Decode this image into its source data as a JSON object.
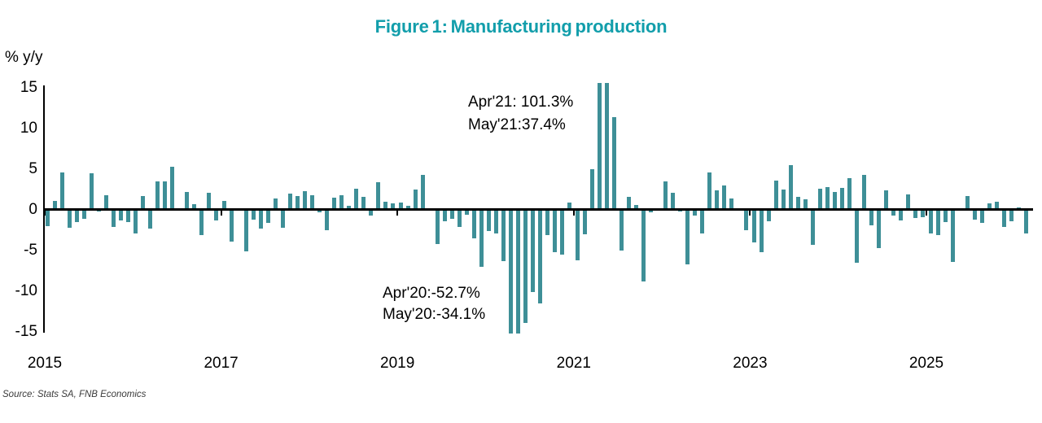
{
  "title": "Figure 1: Manufacturing production",
  "y_axis_unit": "% y/y",
  "source_note": "Source: Stats SA, FNB Economics",
  "colors": {
    "title": "#129EAB",
    "bar": "#3E8F97",
    "axis": "#000000"
  },
  "annotations": {
    "peak_line1": "Apr'21: 101.3%",
    "peak_line2": "May'21:37.4%",
    "trough_line1": "Apr'20:-52.7%",
    "trough_line2": "May'20:-34.1%"
  },
  "chart_data": {
    "type": "bar",
    "title": "Figure 1: Manufacturing production",
    "xlabel": "",
    "ylabel": "% y/y",
    "ylim": [
      -15,
      15
    ],
    "yticks": [
      15,
      10,
      5,
      0,
      -5,
      -10,
      -15
    ],
    "x_tick_labels": [
      "2015",
      "2017",
      "2019",
      "2021",
      "2023",
      "2025"
    ],
    "frequency": "monthly",
    "start": "2015-01",
    "grid": false,
    "legend": "none",
    "clipped_to_axis": true,
    "values": [
      -2.0,
      1.1,
      4.6,
      -2.2,
      -1.5,
      -1.1,
      4.5,
      -0.2,
      1.8,
      -2.1,
      -1.3,
      -1.5,
      -2.9,
      1.7,
      -2.3,
      3.5,
      3.5,
      5.3,
      0.2,
      2.2,
      0.7,
      -3.1,
      2.1,
      -1.3,
      1.1,
      -3.9,
      0.0,
      -5.1,
      -1.2,
      -2.3,
      -1.6,
      1.4,
      -2.2,
      2.0,
      1.7,
      2.3,
      1.8,
      -0.3,
      -2.5,
      1.5,
      1.8,
      0.5,
      2.6,
      1.6,
      -0.7,
      3.4,
      1.0,
      0.8,
      0.9,
      0.5,
      2.5,
      4.3,
      0.2,
      -4.2,
      -1.4,
      -1.1,
      -2.1,
      -0.6,
      -3.5,
      -7.0,
      -2.6,
      -2.9,
      -6.3,
      -52.7,
      -34.1,
      -13.9,
      -10.1,
      -11.5,
      -3.1,
      -5.2,
      -5.5,
      0.9,
      -6.2,
      -3.0,
      5.0,
      101.3,
      37.4,
      11.4,
      -5.0,
      1.6,
      0.6,
      -8.8,
      -0.3,
      -0.1,
      3.5,
      2.1,
      -0.2,
      -6.7,
      -0.7,
      -2.9,
      4.6,
      2.4,
      3.0,
      1.4,
      -0.1,
      -2.5,
      -4.0,
      -5.2,
      -1.4,
      3.6,
      2.5,
      5.5,
      1.6,
      1.3,
      -4.3,
      2.6,
      2.8,
      2.2,
      2.7,
      3.9,
      -6.5,
      4.3,
      -1.9,
      -4.7,
      2.4,
      -0.7,
      -1.3,
      1.9,
      -1.0,
      -0.9,
      -2.9,
      -3.1,
      -1.5,
      -6.4,
      0.1,
      1.7,
      -1.2,
      -1.6,
      0.8,
      1.0,
      -2.1,
      -1.4,
      0.3,
      -2.9
    ]
  }
}
